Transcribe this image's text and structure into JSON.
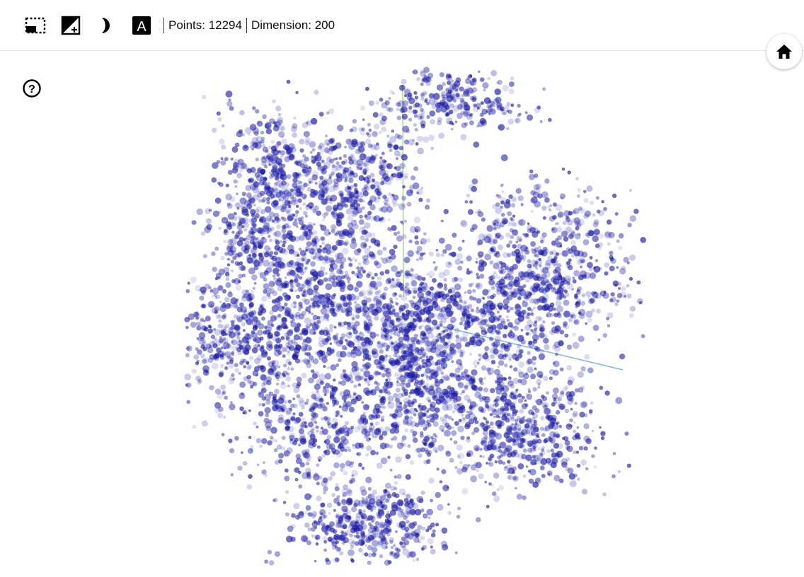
{
  "toolbar": {
    "buttons": [
      {
        "name": "selection-mode-button",
        "icon": "dashed-select-icon"
      },
      {
        "name": "contrast-button",
        "icon": "contrast-plus-icon"
      },
      {
        "name": "night-mode-button",
        "icon": "half-moon-icon"
      },
      {
        "name": "labels-button",
        "icon": "letter-a-icon",
        "glyph": "A"
      }
    ],
    "points_text": "Points: 12294",
    "dimension_text": "Dimension: 200"
  },
  "home": {
    "icon": "home-icon"
  },
  "help": {
    "icon": "question-circle-icon",
    "glyph": "?"
  },
  "scatter": {
    "point_color": "#1a1aa8",
    "y_axis_color": "#9be36b",
    "x_axis_color": "#7fb5e6"
  }
}
